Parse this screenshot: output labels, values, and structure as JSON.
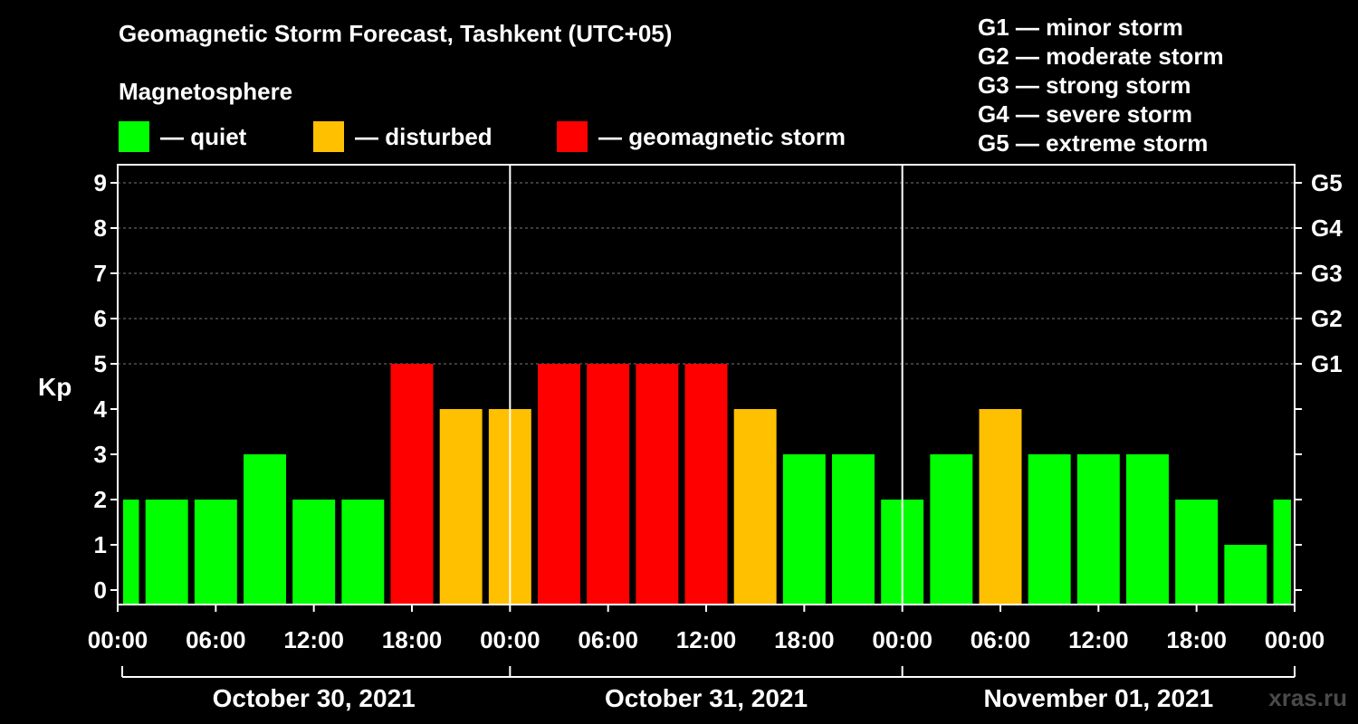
{
  "title": "Geomagnetic Storm Forecast, Tashkent (UTC+05)",
  "subtitle": "Magnetosphere",
  "legend": [
    {
      "label": "— quiet",
      "color": "#00ff00"
    },
    {
      "label": "— disturbed",
      "color": "#ffc000"
    },
    {
      "label": "— geomagnetic storm",
      "color": "#ff0000"
    }
  ],
  "storm_legend": [
    "G1 — minor storm",
    "G2 — moderate storm",
    "G3 — strong storm",
    "G4 — severe storm",
    "G5 — extreme storm"
  ],
  "watermark": "xras.ru",
  "chart_data": {
    "type": "bar",
    "ylabel": "Kp",
    "ylim": [
      0,
      9
    ],
    "y_ticks": [
      0,
      1,
      2,
      3,
      4,
      5,
      6,
      7,
      8,
      9
    ],
    "right_axis_labels": [
      {
        "value": 5,
        "label": "G1"
      },
      {
        "value": 6,
        "label": "G2"
      },
      {
        "value": 7,
        "label": "G3"
      },
      {
        "value": 8,
        "label": "G4"
      },
      {
        "value": 9,
        "label": "G5"
      }
    ],
    "x_tick_labels": [
      "00:00",
      "06:00",
      "12:00",
      "18:00",
      "00:00",
      "06:00",
      "12:00",
      "18:00",
      "00:00",
      "06:00",
      "12:00",
      "18:00",
      "00:00"
    ],
    "days": [
      "October 30, 2021",
      "October 31, 2021",
      "November 01, 2021"
    ],
    "grid": "horizontal dashed",
    "colors": {
      "quiet": "#00ff00",
      "disturbed": "#ffc000",
      "storm": "#ff0000"
    },
    "bars": [
      {
        "start": "2021-10-30 00:00",
        "kp": 2,
        "level": "quiet"
      },
      {
        "start": "2021-10-30 03:00",
        "kp": 2,
        "level": "quiet"
      },
      {
        "start": "2021-10-30 06:00",
        "kp": 2,
        "level": "quiet"
      },
      {
        "start": "2021-10-30 09:00",
        "kp": 3,
        "level": "quiet"
      },
      {
        "start": "2021-10-30 12:00",
        "kp": 2,
        "level": "quiet"
      },
      {
        "start": "2021-10-30 15:00",
        "kp": 2,
        "level": "quiet"
      },
      {
        "start": "2021-10-30 18:00",
        "kp": 5,
        "level": "storm"
      },
      {
        "start": "2021-10-30 21:00",
        "kp": 4,
        "level": "disturbed"
      },
      {
        "start": "2021-10-31 00:00",
        "kp": 4,
        "level": "disturbed"
      },
      {
        "start": "2021-10-31 03:00",
        "kp": 5,
        "level": "storm"
      },
      {
        "start": "2021-10-31 06:00",
        "kp": 5,
        "level": "storm"
      },
      {
        "start": "2021-10-31 09:00",
        "kp": 5,
        "level": "storm"
      },
      {
        "start": "2021-10-31 12:00",
        "kp": 5,
        "level": "storm"
      },
      {
        "start": "2021-10-31 15:00",
        "kp": 4,
        "level": "disturbed"
      },
      {
        "start": "2021-10-31 18:00",
        "kp": 3,
        "level": "quiet"
      },
      {
        "start": "2021-10-31 21:00",
        "kp": 3,
        "level": "quiet"
      },
      {
        "start": "2021-11-01 00:00",
        "kp": 2,
        "level": "quiet"
      },
      {
        "start": "2021-11-01 03:00",
        "kp": 3,
        "level": "quiet"
      },
      {
        "start": "2021-11-01 06:00",
        "kp": 4,
        "level": "disturbed"
      },
      {
        "start": "2021-11-01 09:00",
        "kp": 3,
        "level": "quiet"
      },
      {
        "start": "2021-11-01 12:00",
        "kp": 3,
        "level": "quiet"
      },
      {
        "start": "2021-11-01 15:00",
        "kp": 3,
        "level": "quiet"
      },
      {
        "start": "2021-11-01 18:00",
        "kp": 2,
        "level": "quiet"
      },
      {
        "start": "2021-11-01 21:00",
        "kp": 1,
        "level": "quiet"
      },
      {
        "start": "2021-11-02 00:00",
        "kp": 2,
        "level": "quiet"
      }
    ]
  }
}
